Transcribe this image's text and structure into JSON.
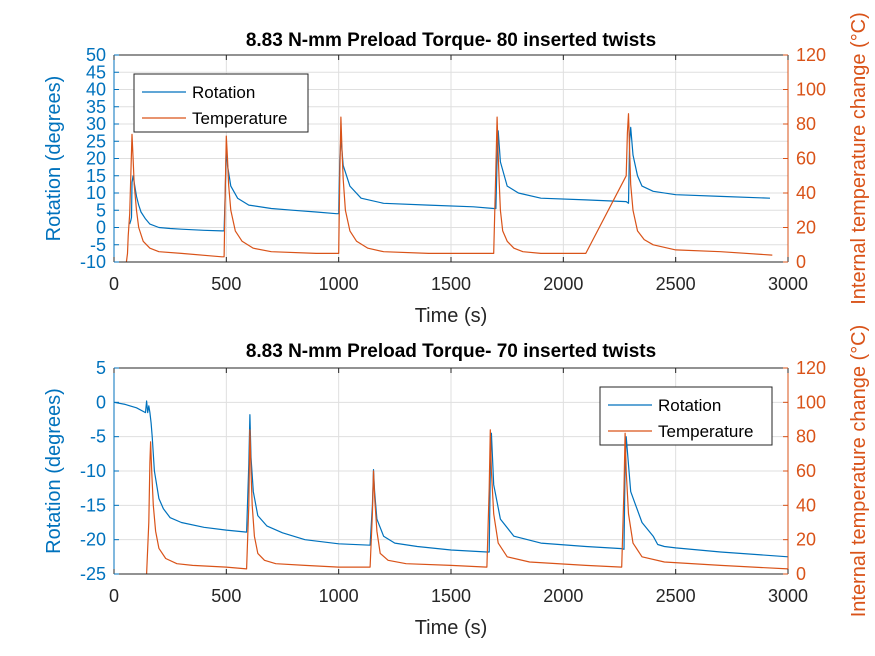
{
  "colors": {
    "rotation": "#0072BD",
    "temperature": "#D95319",
    "grid": "#dfdfdf",
    "axis": "#262626"
  },
  "chart_data": [
    {
      "type": "line",
      "title": "8.83 N-mm Preload Torque- 80 inserted twists",
      "xlabel": "Time (s)",
      "ylabel_left": "Rotation (degrees)",
      "ylabel_right": "Internal temperature change (°C)",
      "xlim": [
        0,
        3000
      ],
      "ylim_left": [
        -10,
        50
      ],
      "ylim_right": [
        0,
        120
      ],
      "xticks": [
        "0",
        "500",
        "1000",
        "1500",
        "2000",
        "2500",
        "3000"
      ],
      "yticks_left": [
        "-10",
        "-5",
        "0",
        "5",
        "10",
        "15",
        "20",
        "25",
        "30",
        "35",
        "40",
        "45",
        "50"
      ],
      "yticks_right": [
        "0",
        "20",
        "40",
        "60",
        "80",
        "100",
        "120"
      ],
      "grid": true,
      "legend_position": "top-left",
      "legend": [
        "Rotation",
        "Temperature"
      ],
      "series": [
        {
          "name": "Rotation",
          "axis": "left",
          "x": [
            70,
            72,
            75,
            78,
            80,
            85,
            90,
            100,
            110,
            120,
            140,
            160,
            200,
            250,
            300,
            400,
            480,
            490,
            495,
            500,
            505,
            520,
            550,
            600,
            700,
            800,
            900,
            990,
            1000,
            1005,
            1010,
            1020,
            1050,
            1100,
            1200,
            1400,
            1600,
            1690,
            1700,
            1705,
            1710,
            1720,
            1750,
            1800,
            1900,
            2100,
            2280,
            2290,
            2295,
            2300,
            2310,
            2330,
            2350,
            2400,
            2500,
            2700,
            2920
          ],
          "y": [
            1,
            1.5,
            2,
            3,
            13,
            15,
            13,
            9,
            6.5,
            4.5,
            2.5,
            1,
            0,
            -0.3,
            -0.5,
            -0.8,
            -1,
            -1,
            10,
            23.5,
            18,
            12,
            8.5,
            6.5,
            5.5,
            5,
            4.5,
            4,
            4,
            20,
            26,
            18,
            12,
            8.5,
            7,
            6.5,
            6,
            5.5,
            5.5,
            20,
            28,
            19,
            12,
            10,
            8.5,
            8,
            7.5,
            7,
            25,
            29,
            21,
            15,
            12,
            10.5,
            9.5,
            9,
            8.5
          ]
        },
        {
          "name": "Temperature",
          "axis": "right",
          "x": [
            55,
            60,
            63,
            70,
            75,
            80,
            85,
            90,
            100,
            110,
            130,
            160,
            200,
            300,
            480,
            490,
            495,
            500,
            505,
            510,
            520,
            540,
            570,
            620,
            700,
            900,
            1000,
            1005,
            1010,
            1015,
            1020,
            1030,
            1050,
            1080,
            1130,
            1200,
            1400,
            1690,
            1700,
            1705,
            1710,
            1715,
            1720,
            1730,
            1750,
            1780,
            1820,
            1900,
            2100,
            2280,
            2285,
            2290,
            2295,
            2300,
            2310,
            2330,
            2360,
            2400,
            2500,
            2700,
            2930
          ],
          "y": [
            0,
            5,
            15,
            28,
            50,
            74,
            60,
            45,
            30,
            20,
            12,
            8,
            6,
            5,
            3,
            3,
            40,
            73,
            60,
            45,
            30,
            18,
            12,
            8,
            6,
            5,
            5,
            50,
            84,
            65,
            48,
            30,
            18,
            12,
            8,
            6,
            5,
            5,
            55,
            84,
            62,
            45,
            30,
            18,
            12,
            8,
            6,
            5,
            5,
            50,
            75,
            86,
            65,
            45,
            30,
            18,
            13,
            10,
            7,
            6,
            4
          ]
        }
      ]
    },
    {
      "type": "line",
      "title": "8.83 N-mm Preload Torque- 70 inserted twists",
      "xlabel": "Time (s)",
      "ylabel_left": "Rotation (degrees)",
      "ylabel_right": "Internal temperature change (°C)",
      "xlim": [
        0,
        3000
      ],
      "ylim_left": [
        -25,
        5
      ],
      "ylim_right": [
        0,
        120
      ],
      "xticks": [
        "0",
        "500",
        "1000",
        "1500",
        "2000",
        "2500",
        "3000"
      ],
      "yticks_left": [
        "-25",
        "-20",
        "-15",
        "-10",
        "-5",
        "0",
        "5"
      ],
      "yticks_right": [
        "0",
        "20",
        "40",
        "60",
        "80",
        "100",
        "120"
      ],
      "grid": true,
      "legend_position": "top-right",
      "legend": [
        "Rotation",
        "Temperature"
      ],
      "series": [
        {
          "name": "Rotation",
          "axis": "left",
          "x": [
            0,
            50,
            100,
            140,
            145,
            150,
            155,
            160,
            165,
            170,
            180,
            200,
            220,
            250,
            300,
            400,
            500,
            590,
            600,
            605,
            610,
            620,
            640,
            680,
            750,
            850,
            1000,
            1140,
            1150,
            1155,
            1160,
            1170,
            1200,
            1250,
            1350,
            1500,
            1660,
            1670,
            1675,
            1680,
            1690,
            1720,
            1780,
            1900,
            2100,
            2260,
            2270,
            2275,
            2280,
            2300,
            2350,
            2400,
            2420,
            2450,
            2500,
            2700,
            3000
          ],
          "y": [
            0,
            -0.3,
            -0.8,
            -1.5,
            0.2,
            -1.5,
            -0.5,
            -1.5,
            -3,
            -5,
            -10,
            -14,
            -15.5,
            -16.8,
            -17.5,
            -18.2,
            -18.6,
            -18.9,
            -9,
            -1.8,
            -8,
            -13,
            -16.5,
            -18,
            -19,
            -20,
            -20.6,
            -20.8,
            -15,
            -9.8,
            -13,
            -17,
            -19.5,
            -20.5,
            -21,
            -21.5,
            -21.8,
            -21.8,
            -10,
            -4.5,
            -12,
            -17,
            -19.5,
            -20.5,
            -21,
            -21.3,
            -21.4,
            -9,
            -5,
            -13,
            -17.5,
            -19.5,
            -20.7,
            -21,
            -21.2,
            -21.8,
            -22.5
          ]
        },
        {
          "name": "Temperature",
          "axis": "right",
          "x": [
            145,
            155,
            160,
            163,
            168,
            175,
            185,
            200,
            230,
            280,
            350,
            500,
            590,
            600,
            605,
            610,
            615,
            625,
            640,
            670,
            720,
            850,
            1000,
            1140,
            1150,
            1155,
            1160,
            1170,
            1185,
            1220,
            1300,
            1500,
            1660,
            1670,
            1675,
            1680,
            1690,
            1710,
            1750,
            1850,
            2100,
            2260,
            2270,
            2275,
            2280,
            2290,
            2310,
            2350,
            2450,
            2700,
            3000
          ],
          "y": [
            0,
            30,
            65,
            77,
            60,
            40,
            25,
            15,
            9,
            6,
            5,
            4,
            3,
            40,
            84,
            60,
            40,
            22,
            12,
            8,
            6,
            5,
            4,
            4,
            35,
            60,
            45,
            25,
            12,
            8,
            6,
            5,
            4,
            50,
            84,
            60,
            35,
            18,
            10,
            7,
            5,
            4,
            50,
            82,
            60,
            35,
            18,
            10,
            7,
            5,
            3
          ]
        }
      ]
    }
  ]
}
